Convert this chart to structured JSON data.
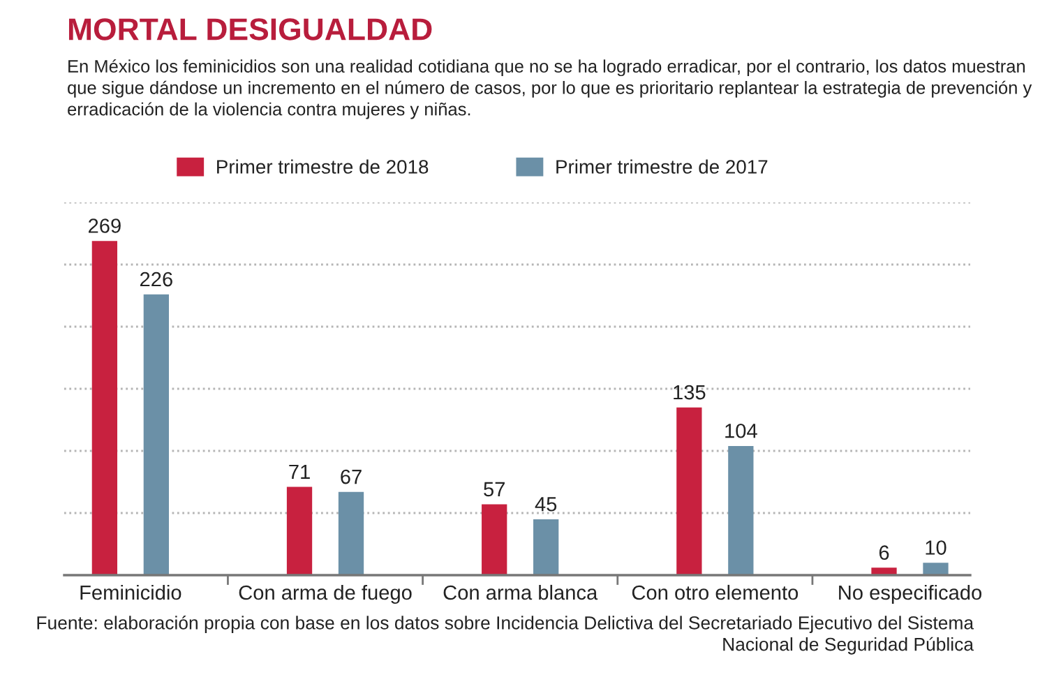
{
  "chart_data": {
    "type": "bar",
    "title": "MORTAL DESIGUALDAD",
    "subtitle": "En México los feminicidios son una realidad cotidiana que no se ha logrado erradicar, por el contrario, los datos muestran que sigue dándose un incremento en el número de casos, por lo que es prioritario replantear la estrategia de prevención y erradicación de la violencia contra mujeres y niñas.",
    "categories": [
      "Feminicidio",
      "Con arma de fuego",
      "Con arma blanca",
      "Con otro elemento",
      "No especificado"
    ],
    "series": [
      {
        "name": "Primer trimestre de 2018",
        "color": "#c8213f",
        "values": [
          269,
          71,
          57,
          135,
          6
        ]
      },
      {
        "name": "Primer trimestre de 2017",
        "color": "#6b90a7",
        "values": [
          226,
          67,
          45,
          104,
          10
        ]
      }
    ],
    "ylim": [
      0,
      300
    ],
    "yticks": [
      {
        "value": 50,
        "label": null
      },
      {
        "value": 100,
        "label": null
      },
      {
        "value": 150,
        "label": null
      },
      {
        "value": 200,
        "label": null
      },
      {
        "value": 250,
        "label": null
      },
      {
        "value": 300,
        "label": null
      }
    ],
    "grid": "y",
    "legend": "top",
    "data_labels": true,
    "tick_labels": "x",
    "annotations": [
      "Fuente: elaboración propia con base en los datos sobre Incidencia Delictiva del Secretariado Ejecutivo del Sistema Nacional de Seguridad Pública"
    ]
  }
}
